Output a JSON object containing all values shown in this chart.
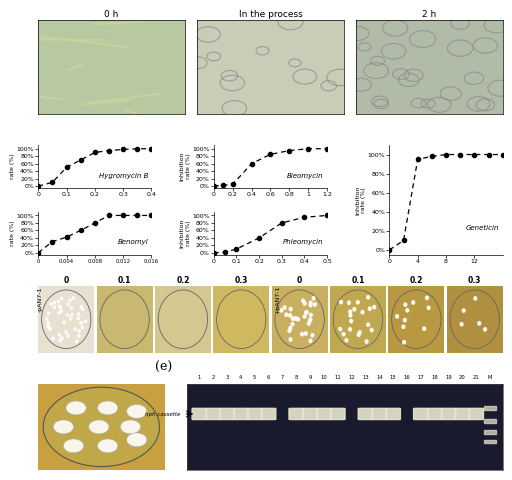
{
  "title_0h": "0 h",
  "title_process": "In the process",
  "title_2h": "2 h",
  "hygromycin_x": [
    0,
    0.05,
    0.1,
    0.15,
    0.2,
    0.25,
    0.3,
    0.35,
    0.4
  ],
  "hygromycin_y": [
    0,
    10,
    50,
    70,
    90,
    95,
    98,
    100,
    100
  ],
  "hygromycin_label": "Hygromycin B",
  "hygromycin_xlim": [
    0,
    0.4
  ],
  "hygromycin_xticks": [
    0,
    0.1,
    0.2,
    0.3,
    0.4
  ],
  "bleomycin_x": [
    0,
    0.1,
    0.2,
    0.4,
    0.6,
    0.8,
    1.0,
    1.2
  ],
  "bleomycin_y": [
    0,
    2,
    5,
    60,
    85,
    95,
    100,
    100
  ],
  "bleomycin_label": "Bleomycin",
  "bleomycin_xlim": [
    0,
    1.2
  ],
  "bleomycin_xticks": [
    0,
    0.2,
    0.4,
    0.6,
    0.8,
    1,
    1.2
  ],
  "geneticin_x": [
    0,
    2,
    4,
    6,
    8,
    10,
    12,
    14,
    16
  ],
  "geneticin_y": [
    0,
    10,
    95,
    98,
    100,
    100,
    100,
    100,
    100
  ],
  "geneticin_label": "Geneticin",
  "geneticin_xlim": [
    0,
    16
  ],
  "geneticin_xticks": [
    0,
    4,
    8,
    12
  ],
  "benomyl_x": [
    0,
    0.002,
    0.004,
    0.006,
    0.008,
    0.01,
    0.012,
    0.014,
    0.016
  ],
  "benomyl_y": [
    0,
    30,
    42,
    60,
    80,
    100,
    100,
    100,
    100
  ],
  "benomyl_label": "Benomyl",
  "benomyl_xlim": [
    0,
    0.016
  ],
  "benomyl_xticks": [
    0,
    0.004,
    0.008,
    0.012,
    0.016
  ],
  "phleomycin_x": [
    0,
    0.05,
    0.1,
    0.2,
    0.3,
    0.4,
    0.5
  ],
  "phleomycin_y": [
    0,
    2,
    10,
    40,
    80,
    95,
    100
  ],
  "phleomycin_label": "Phleomycin",
  "phleomycin_xlim": [
    0,
    0.5
  ],
  "phleomycin_xticks": [
    0,
    0.1,
    0.2,
    0.3,
    0.4,
    0.5
  ],
  "plate_labels_left": [
    "0",
    "0.1",
    "0.2",
    "0.3"
  ],
  "plate_labels_right": [
    "0",
    "0.1",
    "0.2",
    "0.3"
  ],
  "panel_label_left": "-pAN7-1",
  "panel_label_right": "+pAN7-1",
  "gel_label": "(e)",
  "gel_numbers": [
    "1",
    "2",
    "3",
    "4",
    "5",
    "6",
    "7",
    "8",
    "9",
    "10",
    "11",
    "12",
    "13",
    "14",
    "15",
    "16",
    "17",
    "18",
    "19",
    "20",
    "21",
    "M"
  ],
  "hph_label": "hph cassette",
  "img_bg_micro1": "#b8c8a0",
  "img_bg_micro2": "#c8cdb8",
  "img_bg_micro3": "#b0bca8",
  "img_bg_gel": "#1a1a2e",
  "gel_band_color": "#e8e8d0",
  "ytick_labels": [
    "0%",
    "20%",
    "40%",
    "60%",
    "80%",
    "100%"
  ],
  "ytick_vals": [
    0,
    20,
    40,
    60,
    80,
    100
  ],
  "figure_bg": "#ffffff",
  "curve_color": "#000000",
  "marker_color": "#000000"
}
